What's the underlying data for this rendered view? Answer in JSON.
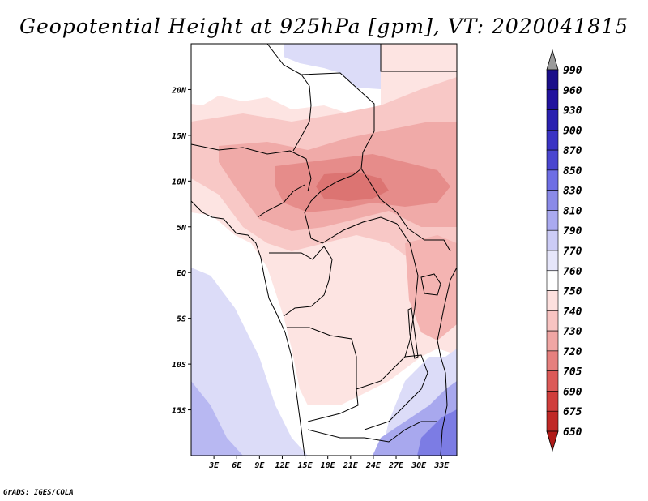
{
  "title": "Geopotential Height at 925hPa [gpm], VT: 2020041815",
  "credit": "GrADS: IGES/COLA",
  "map": {
    "lon_range": [
      0,
      35
    ],
    "lat_range": [
      -20,
      25
    ],
    "x_ticks": [
      "3E",
      "6E",
      "9E",
      "12E",
      "15E",
      "18E",
      "21E",
      "24E",
      "27E",
      "30E",
      "33E"
    ],
    "x_tick_values": [
      3,
      6,
      9,
      12,
      15,
      18,
      21,
      24,
      27,
      30,
      33
    ],
    "y_ticks": [
      "20N",
      "15N",
      "10N",
      "5N",
      "EQ",
      "5S",
      "10S",
      "15S"
    ],
    "y_tick_values": [
      20,
      15,
      10,
      5,
      0,
      -5,
      -10,
      -15
    ]
  },
  "colorbar": {
    "levels": [
      "990",
      "960",
      "930",
      "900",
      "870",
      "850",
      "830",
      "810",
      "790",
      "770",
      "760",
      "750",
      "740",
      "730",
      "720",
      "705",
      "690",
      "675",
      "650"
    ],
    "colors": [
      "#9a9a9a",
      "#1a0e8a",
      "#21129e",
      "#2a20b0",
      "#3a33c4",
      "#4a46d0",
      "#6e6ee4",
      "#8a8ae8",
      "#aaaaf0",
      "#ccccf6",
      "#e6e6fa",
      "#ffffff",
      "#fde0de",
      "#f8c4c2",
      "#f0a6a4",
      "#e6807e",
      "#dc5a58",
      "#d03e3c",
      "#c02826",
      "#b01a18"
    ]
  }
}
